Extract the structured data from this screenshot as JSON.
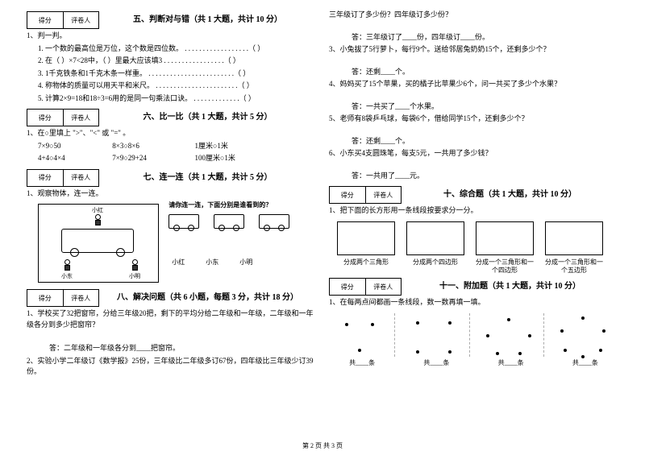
{
  "score": {
    "c1": "得分",
    "c2": "评卷人"
  },
  "s5": {
    "title": "五、判断对与错（共 1 大题，共计 10 分）",
    "lead": "1、判一判。",
    "items": [
      "1. 一个数的最高位是万位，这个数是四位数。   . . . . . . . . . . . . . . . . . .（         ）",
      "2. 在（    ）×7<28中，（    ）里最大应该填3 . . . . . . . . . . . . . . . . .（         ）",
      "3. 1千克铁条和1千克木条一样重。   . . . . . . . . . . . . . . . . . . . . . . . .（         ）",
      "4. 称物体的质量可以用天平和米尺。  . . . . . . . . . . . . . . . . . . . . . . .（         ）",
      "5. 计算2×9=18和18÷3=6用的是同一句乘法口诀。 . . . . . . . . . . . . .（         ）"
    ]
  },
  "s6": {
    "title": "六、比一比（共 1 大题，共计 5 分）",
    "lead": "1、在○里填上 \">\"、\"<\" 或 \"=\" 。",
    "rows": [
      [
        "7×9○50",
        "8×3○8×6",
        "1厘米○1米"
      ],
      [
        "4+4○4×4",
        "7×9○29+24",
        "100厘米○1米"
      ]
    ]
  },
  "s7": {
    "title": "七、连一连（共 1 大题，共计 5 分）",
    "lead": "1、观察物体，连一连。",
    "prompt": "请你连一连，下面分别是谁看到的？",
    "names": [
      "小红",
      "小东",
      "小明"
    ],
    "frame_labels": {
      "top": "小红",
      "bl": "小东",
      "br": "小明"
    }
  },
  "s8": {
    "title": "八、解决问题（共 6 小题，每题 3 分，共计 18 分）",
    "q1": "1、学校买了32把窗帘，分给三年级20把，剩下的平均分给二年级和一年级，二年级和一年级各分到多少把窗帘？",
    "a1": "答：二年级和一年级各分到____把窗帘。",
    "q2": "2、实验小学二年级订《数学报》25份，三年级比二年级多订67份，四年级比三年级少订39份。",
    "q2b": "三年级订了多少份？四年级订多少份？",
    "a2": "答：三年级订了____份，四年级订____份。",
    "q3": "3、小兔拔了5行萝卜，每行9个。送给邻居兔奶奶15个，还剩多少个？",
    "a3": "答：还剩____个。",
    "q4": "4、妈妈买了15个苹果，买的橘子比苹果少6个，问一共买了多少个水果？",
    "a4": "答：一共买了____个水果。",
    "q5": "5、老师有8袋乒乓球，每袋6个，借给同学15个，还剩多少个？",
    "a5": "答：还剩____个。",
    "q6": "6、小东买4支圆珠笔，每支5元，一共用了多少钱？",
    "a6": "答：一共用了____元。"
  },
  "s10": {
    "title": "十、综合题（共 1 大题，共计 10 分）",
    "lead": "1、把下面的长方形用一条线段按要求分一分。",
    "labels": [
      "分成两个三角形",
      "分成两个四边形",
      "分成一个三角形和一个四边形",
      "分成一个三角形和一个五边形"
    ]
  },
  "s11": {
    "title": "十一、附加题（共 1 大题，共计 10 分）",
    "lead": "1、在每两点间都画一条线段，数一数再填一填。",
    "label": "共____条",
    "groups": [
      {
        "dots": [
          [
            20,
            12
          ],
          [
            52,
            12
          ],
          [
            36,
            44
          ]
        ]
      },
      {
        "dots": [
          [
            16,
            10
          ],
          [
            56,
            10
          ],
          [
            16,
            46
          ],
          [
            56,
            46
          ]
        ]
      },
      {
        "dots": [
          [
            36,
            6
          ],
          [
            10,
            26
          ],
          [
            62,
            26
          ],
          [
            22,
            48
          ],
          [
            50,
            48
          ]
        ]
      },
      {
        "dots": [
          [
            36,
            4
          ],
          [
            10,
            20
          ],
          [
            62,
            20
          ],
          [
            14,
            44
          ],
          [
            58,
            44
          ],
          [
            36,
            52
          ]
        ]
      }
    ]
  },
  "footer": "第 2 页  共 3 页"
}
